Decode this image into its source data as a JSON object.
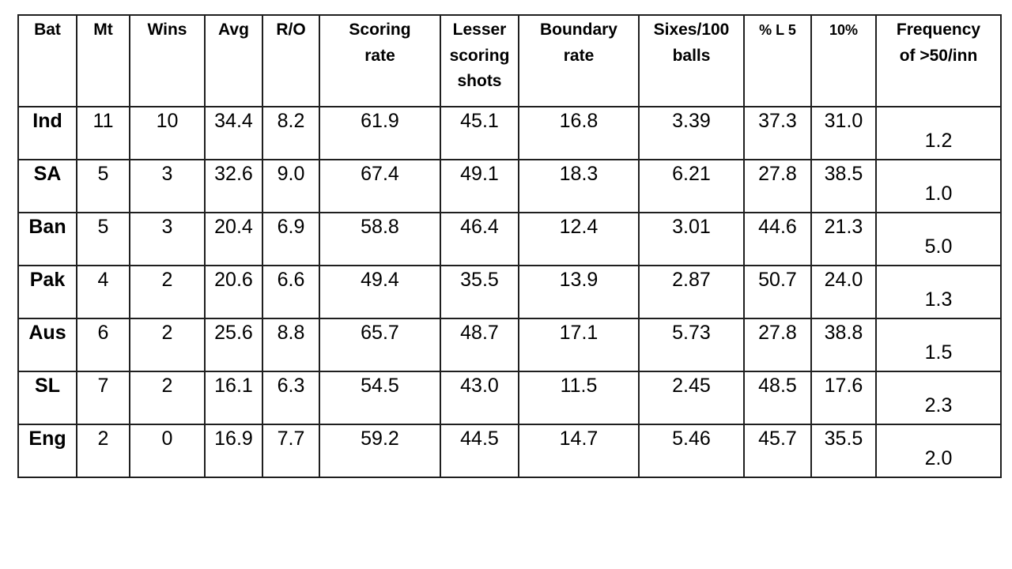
{
  "table": {
    "columns": [
      "Bat",
      "Mt",
      "Wins",
      "Avg",
      "R/O",
      "Scoring\nrate",
      "Lesser\nscoring\nshots",
      "Boundary\nrate",
      "Sixes/100\nballs",
      "% L 5",
      "10%",
      "Frequency\nof >50/inn"
    ],
    "rows": [
      [
        "Ind",
        "11",
        "10",
        "34.4",
        "8.2",
        "61.9",
        "45.1",
        "16.8",
        "3.39",
        "37.3",
        "31.0",
        "1.2"
      ],
      [
        "SA",
        "5",
        "3",
        "32.6",
        "9.0",
        "67.4",
        "49.1",
        "18.3",
        "6.21",
        "27.8",
        "38.5",
        "1.0"
      ],
      [
        "Ban",
        "5",
        "3",
        "20.4",
        "6.9",
        "58.8",
        "46.4",
        "12.4",
        "3.01",
        "44.6",
        "21.3",
        "5.0"
      ],
      [
        "Pak",
        "4",
        "2",
        "20.6",
        "6.6",
        "49.4",
        "35.5",
        "13.9",
        "2.87",
        "50.7",
        "24.0",
        "1.3"
      ],
      [
        "Aus",
        "6",
        "2",
        "25.6",
        "8.8",
        "65.7",
        "48.7",
        "17.1",
        "5.73",
        "27.8",
        "38.8",
        "1.5"
      ],
      [
        "SL",
        "7",
        "2",
        "16.1",
        "6.3",
        "54.5",
        "43.0",
        "11.5",
        "2.45",
        "48.5",
        "17.6",
        "2.3"
      ],
      [
        "Eng",
        "2",
        "0",
        "16.9",
        "7.7",
        "59.2",
        "44.5",
        "14.7",
        "5.46",
        "45.7",
        "35.5",
        "2.0"
      ]
    ]
  },
  "colors": {
    "border": "#1f1f1f",
    "text": "#000000",
    "background": "#ffffff"
  },
  "chart_data": {
    "type": "table",
    "title": "",
    "columns": [
      "Bat",
      "Mt",
      "Wins",
      "Avg",
      "R/O",
      "Scoring rate",
      "Lesser scoring shots",
      "Boundary rate",
      "Sixes/100 balls",
      "% L 5",
      "10%",
      "Frequency of >50/inn"
    ],
    "rows": [
      {
        "Bat": "Ind",
        "Mt": 11,
        "Wins": 10,
        "Avg": 34.4,
        "R/O": 8.2,
        "Scoring rate": 61.9,
        "Lesser scoring shots": 45.1,
        "Boundary rate": 16.8,
        "Sixes/100 balls": 3.39,
        "% L 5": 37.3,
        "10%": 31.0,
        "Frequency of >50/inn": 1.2
      },
      {
        "Bat": "SA",
        "Mt": 5,
        "Wins": 3,
        "Avg": 32.6,
        "R/O": 9.0,
        "Scoring rate": 67.4,
        "Lesser scoring shots": 49.1,
        "Boundary rate": 18.3,
        "Sixes/100 balls": 6.21,
        "% L 5": 27.8,
        "10%": 38.5,
        "Frequency of >50/inn": 1.0
      },
      {
        "Bat": "Ban",
        "Mt": 5,
        "Wins": 3,
        "Avg": 20.4,
        "R/O": 6.9,
        "Scoring rate": 58.8,
        "Lesser scoring shots": 46.4,
        "Boundary rate": 12.4,
        "Sixes/100 balls": 3.01,
        "% L 5": 44.6,
        "10%": 21.3,
        "Frequency of >50/inn": 5.0
      },
      {
        "Bat": "Pak",
        "Mt": 4,
        "Wins": 2,
        "Avg": 20.6,
        "R/O": 6.6,
        "Scoring rate": 49.4,
        "Lesser scoring shots": 35.5,
        "Boundary rate": 13.9,
        "Sixes/100 balls": 2.87,
        "% L 5": 50.7,
        "10%": 24.0,
        "Frequency of >50/inn": 1.3
      },
      {
        "Bat": "Aus",
        "Mt": 6,
        "Wins": 2,
        "Avg": 25.6,
        "R/O": 8.8,
        "Scoring rate": 65.7,
        "Lesser scoring shots": 48.7,
        "Boundary rate": 17.1,
        "Sixes/100 balls": 5.73,
        "% L 5": 27.8,
        "10%": 38.8,
        "Frequency of >50/inn": 1.5
      },
      {
        "Bat": "SL",
        "Mt": 7,
        "Wins": 2,
        "Avg": 16.1,
        "R/O": 6.3,
        "Scoring rate": 54.5,
        "Lesser scoring shots": 43.0,
        "Boundary rate": 11.5,
        "Sixes/100 balls": 2.45,
        "% L 5": 48.5,
        "10%": 17.6,
        "Frequency of >50/inn": 2.3
      },
      {
        "Bat": "Eng",
        "Mt": 2,
        "Wins": 0,
        "Avg": 16.9,
        "R/O": 7.7,
        "Scoring rate": 59.2,
        "Lesser scoring shots": 44.5,
        "Boundary rate": 14.7,
        "Sixes/100 balls": 5.46,
        "% L 5": 45.7,
        "10%": 35.5,
        "Frequency of >50/inn": 2.0
      }
    ],
    "layout": {
      "grid": true,
      "header_position": "top",
      "row_label_column": "Bat"
    }
  }
}
